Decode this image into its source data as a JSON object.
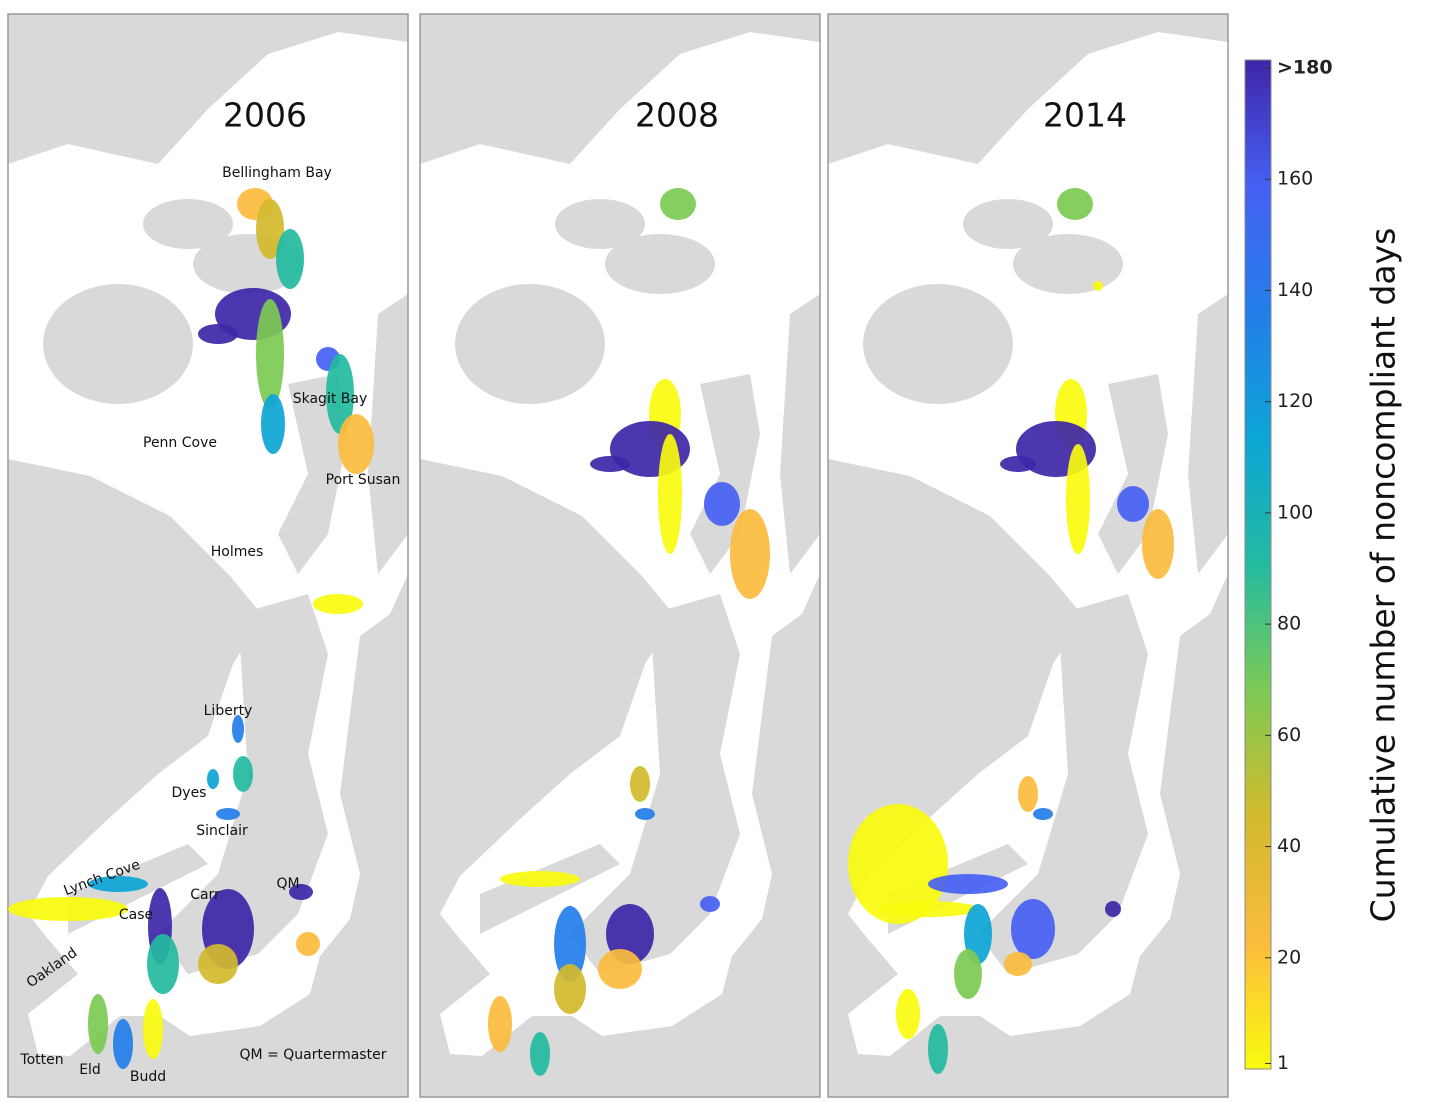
{
  "panels": [
    {
      "year": "2006",
      "labels": [
        "Bellingham Bay",
        "Skagit Bay",
        "Penn Cove",
        "Port Susan",
        "Holmes",
        "Liberty",
        "Dyes",
        "Sinclair",
        "Lynch Cove",
        "Case",
        "Carr",
        "QM",
        "Oakland",
        "Totten",
        "Eld",
        "Budd"
      ],
      "note": "QM = Quartermaster"
    },
    {
      "year": "2008"
    },
    {
      "year": "2014"
    }
  ],
  "colorbar": {
    "title": "Cumulative number of noncompliant days",
    "ylim": [
      0,
      180
    ],
    "yticks": [
      1,
      20,
      40,
      60,
      80,
      100,
      120,
      140,
      160,
      {
        "value": 180,
        "label": ">180"
      }
    ],
    "colors": [
      "#f9fb0e",
      "#fbbc3d",
      "#d2ba2c",
      "#7dca54",
      "#23bba0",
      "#0da5d6",
      "#237ee9",
      "#4660f3",
      "#3e26a8"
    ]
  }
}
